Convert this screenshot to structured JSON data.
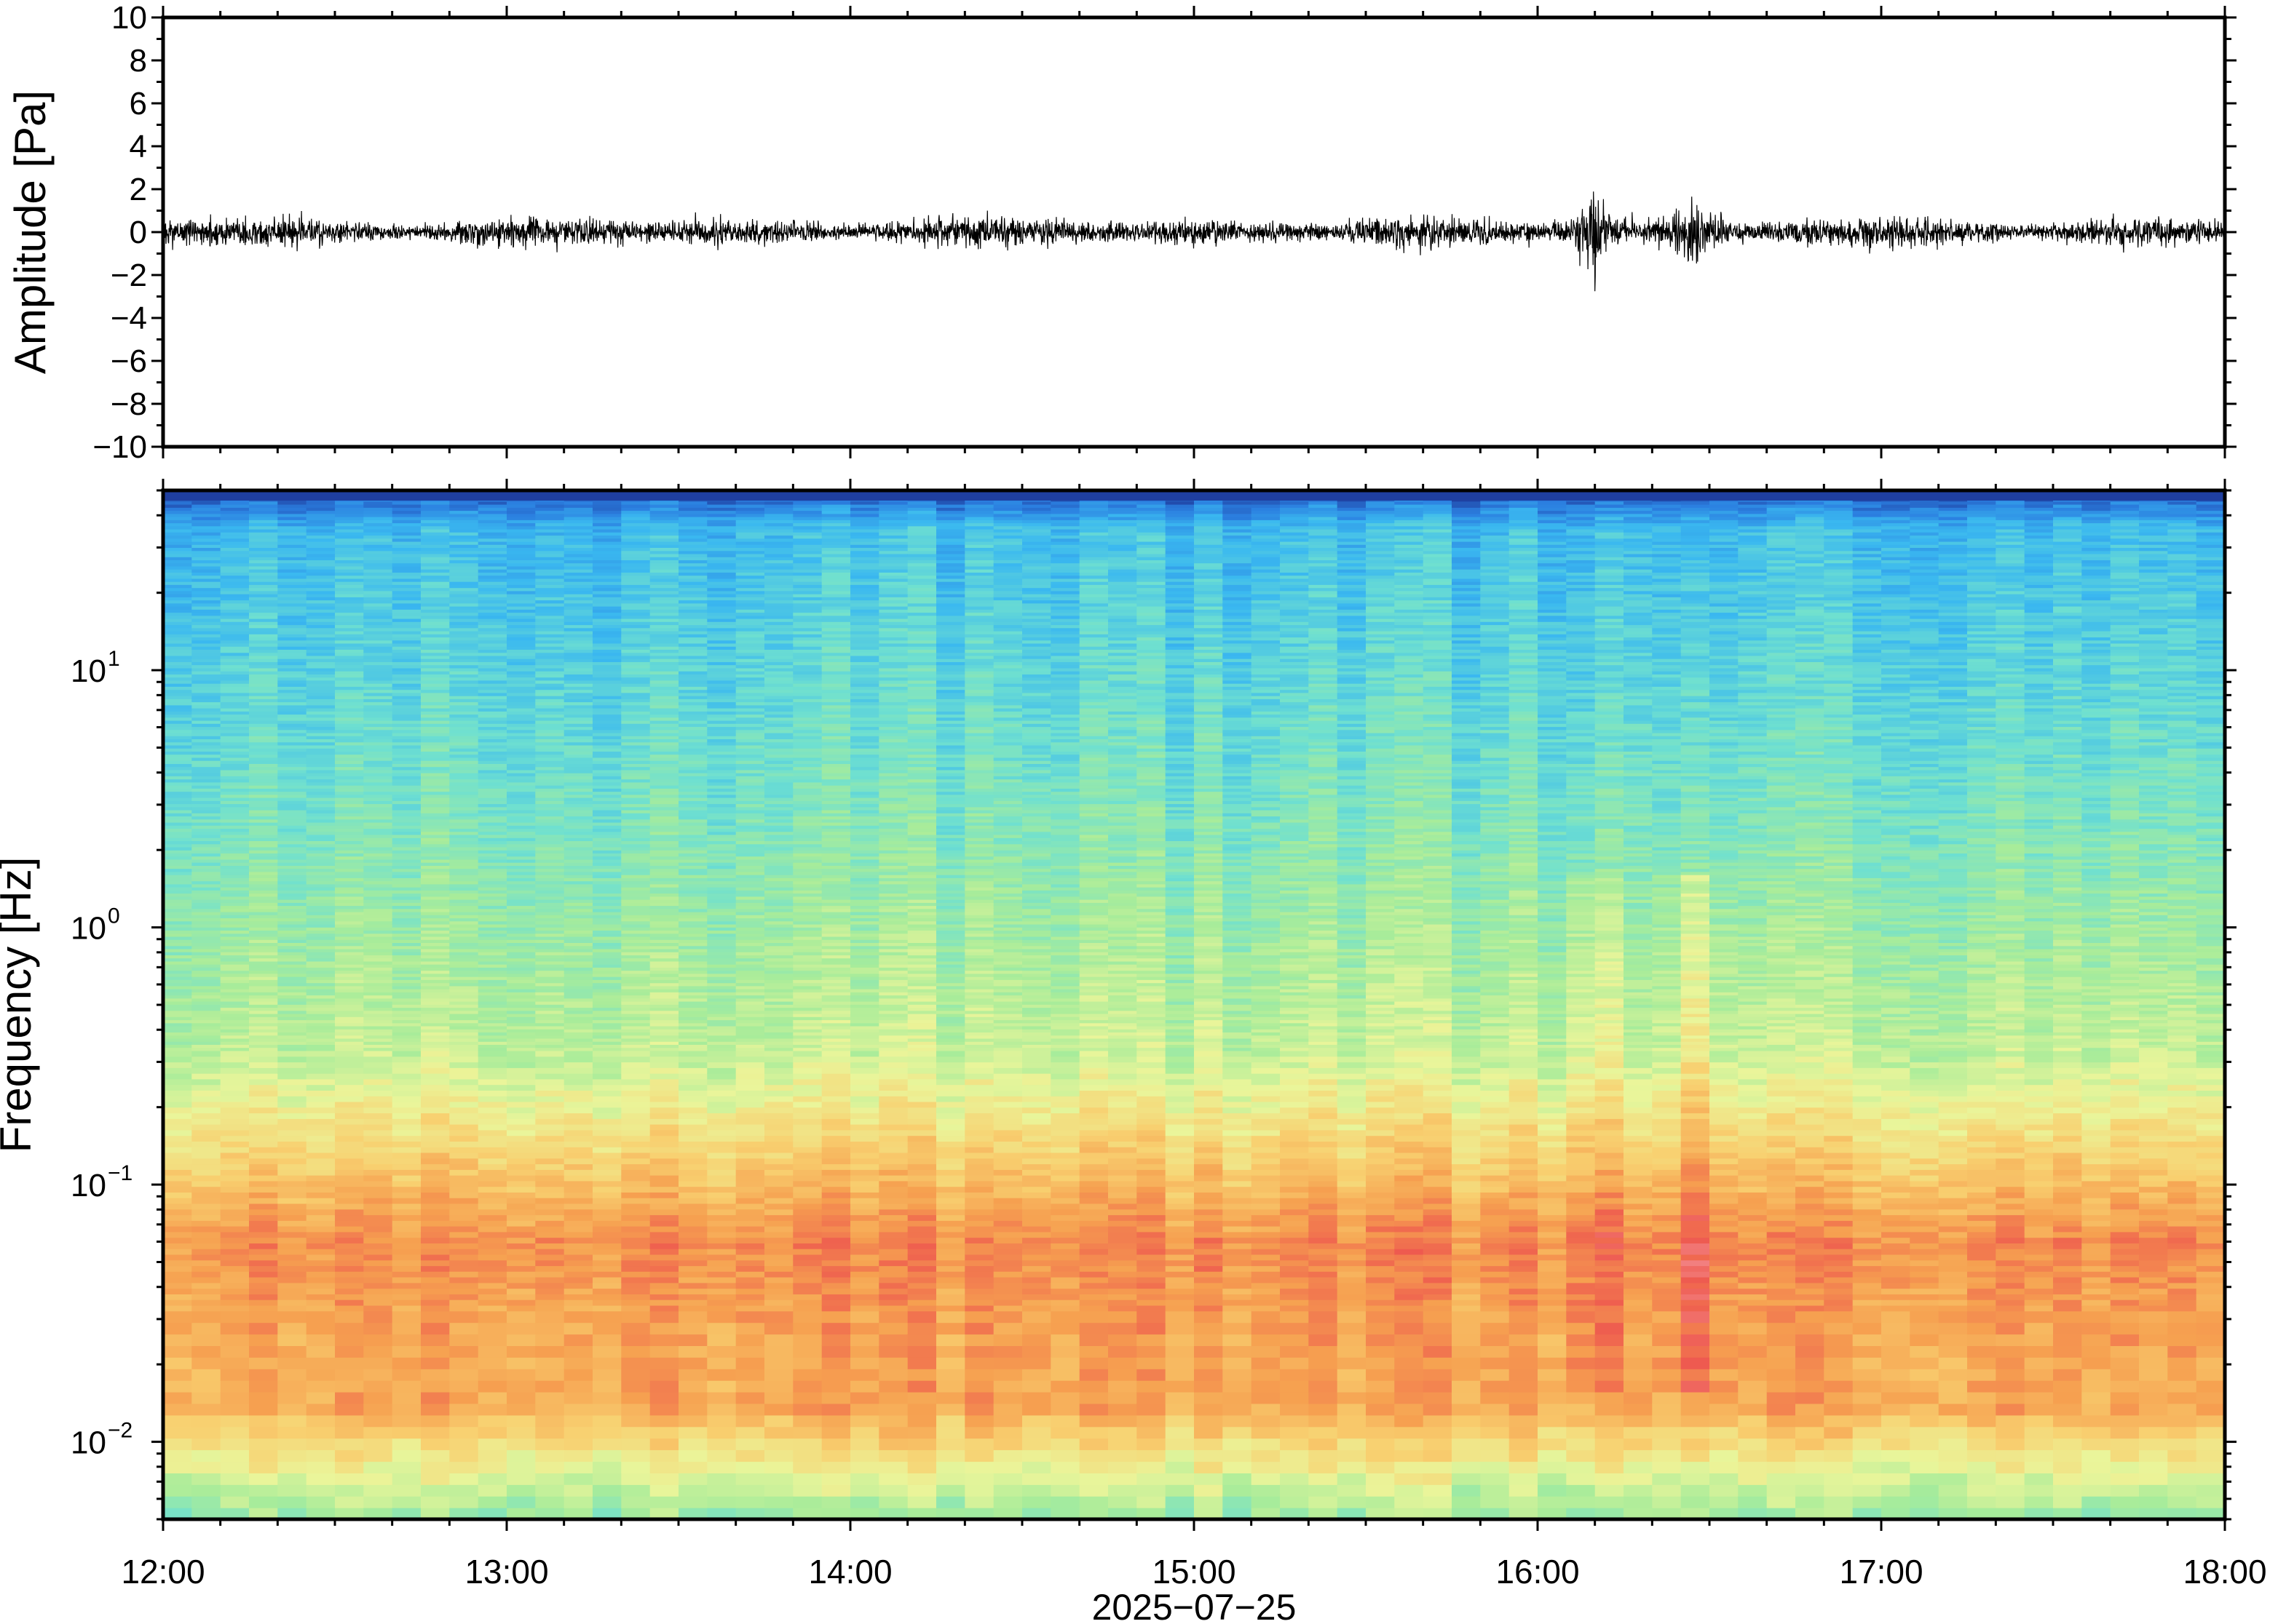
{
  "chart_data": [
    {
      "type": "line",
      "panel": "waveform",
      "title": "",
      "xlabel": "",
      "ylabel": "Amplitude [Pa]",
      "ylim": [
        -10,
        10
      ],
      "yticks": [
        10,
        8,
        6,
        4,
        2,
        0,
        -2,
        -4,
        -6,
        -8,
        -10
      ],
      "ytick_labels": [
        "10",
        "8",
        "6",
        "4",
        "2",
        "0",
        "−2",
        "−4",
        "−6",
        "−8",
        "−10"
      ],
      "x_range_hours": [
        12,
        18
      ],
      "line_color": "#000000",
      "background_rms_pa": 0.45,
      "events": [
        {
          "time": "16:10",
          "peak_min": -3.0,
          "peak_max": 2.0
        },
        {
          "time": "16:27",
          "peak_min": -2.1,
          "peak_max": 2.0
        }
      ],
      "grid": false
    },
    {
      "type": "heatmap",
      "panel": "spectrogram",
      "title": "",
      "ylabel": "Frequency [Hz]",
      "yscale": "log",
      "ylim": [
        0.005,
        50
      ],
      "yticks": [
        {
          "value": 0.01,
          "base": "10",
          "exp": "−2"
        },
        {
          "value": 0.1,
          "base": "10",
          "exp": "−1"
        },
        {
          "value": 1,
          "base": "10",
          "exp": "0"
        },
        {
          "value": 10,
          "base": "10",
          "exp": "1"
        }
      ],
      "colormap": [
        "#1f3fa0",
        "#2b7fe0",
        "#3ab8f0",
        "#6fe0d0",
        "#a8ec9a",
        "#eaf59a",
        "#f8d070",
        "#f6a050",
        "#ee5a4f",
        "#f5a0a8"
      ],
      "grid": false
    }
  ],
  "xaxis": {
    "label": "2025−07−25",
    "ticks": [
      "12:00",
      "13:00",
      "14:00",
      "15:00",
      "16:00",
      "17:00",
      "18:00"
    ]
  }
}
